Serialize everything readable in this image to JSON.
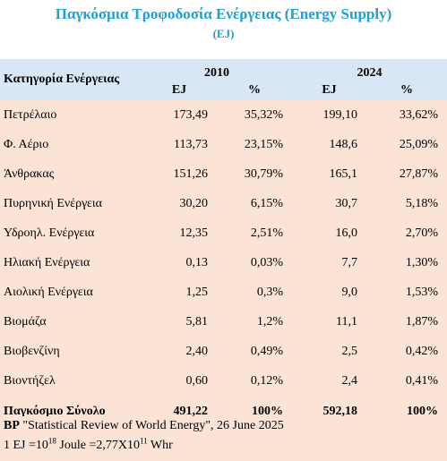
{
  "title": "Παγκόσμια Τροφοδοσία Ενέργειας (Energy Supply)",
  "subtitle": "(EJ)",
  "table": {
    "category_header": "Κατηγορία Ενέργειας",
    "year_a": "2010",
    "year_b": "2024",
    "unit_label": "EJ",
    "pct_label": "%",
    "rows": [
      {
        "name": "Πετρέλαιο",
        "ej2010": "173,49",
        "pct2010": "35,32%",
        "ej2024": "199,10",
        "pct2024": "33,62%"
      },
      {
        "name": "Φ. Αέριο",
        "ej2010": "113,73",
        "pct2010": "23,15%",
        "ej2024": "148,6",
        "pct2024": "25,09%"
      },
      {
        "name": "Άνθρακας",
        "ej2010": "151,26",
        "pct2010": "30,79%",
        "ej2024": "165,1",
        "pct2024": "27,87%"
      },
      {
        "name": "Πυρηνική Ενέργεια",
        "ej2010": "30,20",
        "pct2010": "6,15%",
        "ej2024": "30,7",
        "pct2024": "5,18%"
      },
      {
        "name": "Υδροηλ. Ενέργεια",
        "ej2010": "12,35",
        "pct2010": "2,51%",
        "ej2024": "16,0",
        "pct2024": "2,70%"
      },
      {
        "name": "Ηλιακή Ενέργεια",
        "ej2010": "0,13",
        "pct2010": "0,03%",
        "ej2024": "7,7",
        "pct2024": "1,30%"
      },
      {
        "name": "Αιολική Ενέργεια",
        "ej2010": "1,25",
        "pct2010": "0,3%",
        "ej2024": "9,0",
        "pct2024": "1,53%"
      },
      {
        "name": "Βιομάζα",
        "ej2010": "5,81",
        "pct2010": "1,2%",
        "ej2024": "11,1",
        "pct2024": "1,87%"
      },
      {
        "name": "Βιοβενζίνη",
        "ej2010": "2,40",
        "pct2010": "0,49%",
        "ej2024": "2,5",
        "pct2024": "0,42%"
      },
      {
        "name": "Βιοντήζελ",
        "ej2010": "0,60",
        "pct2010": "0,12%",
        "ej2024": "2,4",
        "pct2024": "0,41%"
      }
    ],
    "total": {
      "name": "Παγκόσμιο Σύνολο",
      "ej2010": "491,22",
      "pct2010": "100%",
      "ej2024": "592,18",
      "pct2024": "100%"
    }
  },
  "footer": {
    "source_org": "BP",
    "source_text": "\"Statistical Review of World Energy\", 26 June 2025",
    "conv_a": "1 EJ =10",
    "conv_exp1": "18",
    "conv_b": " Joule =2,77X10",
    "conv_exp2": "11",
    "conv_c": " Whr"
  }
}
